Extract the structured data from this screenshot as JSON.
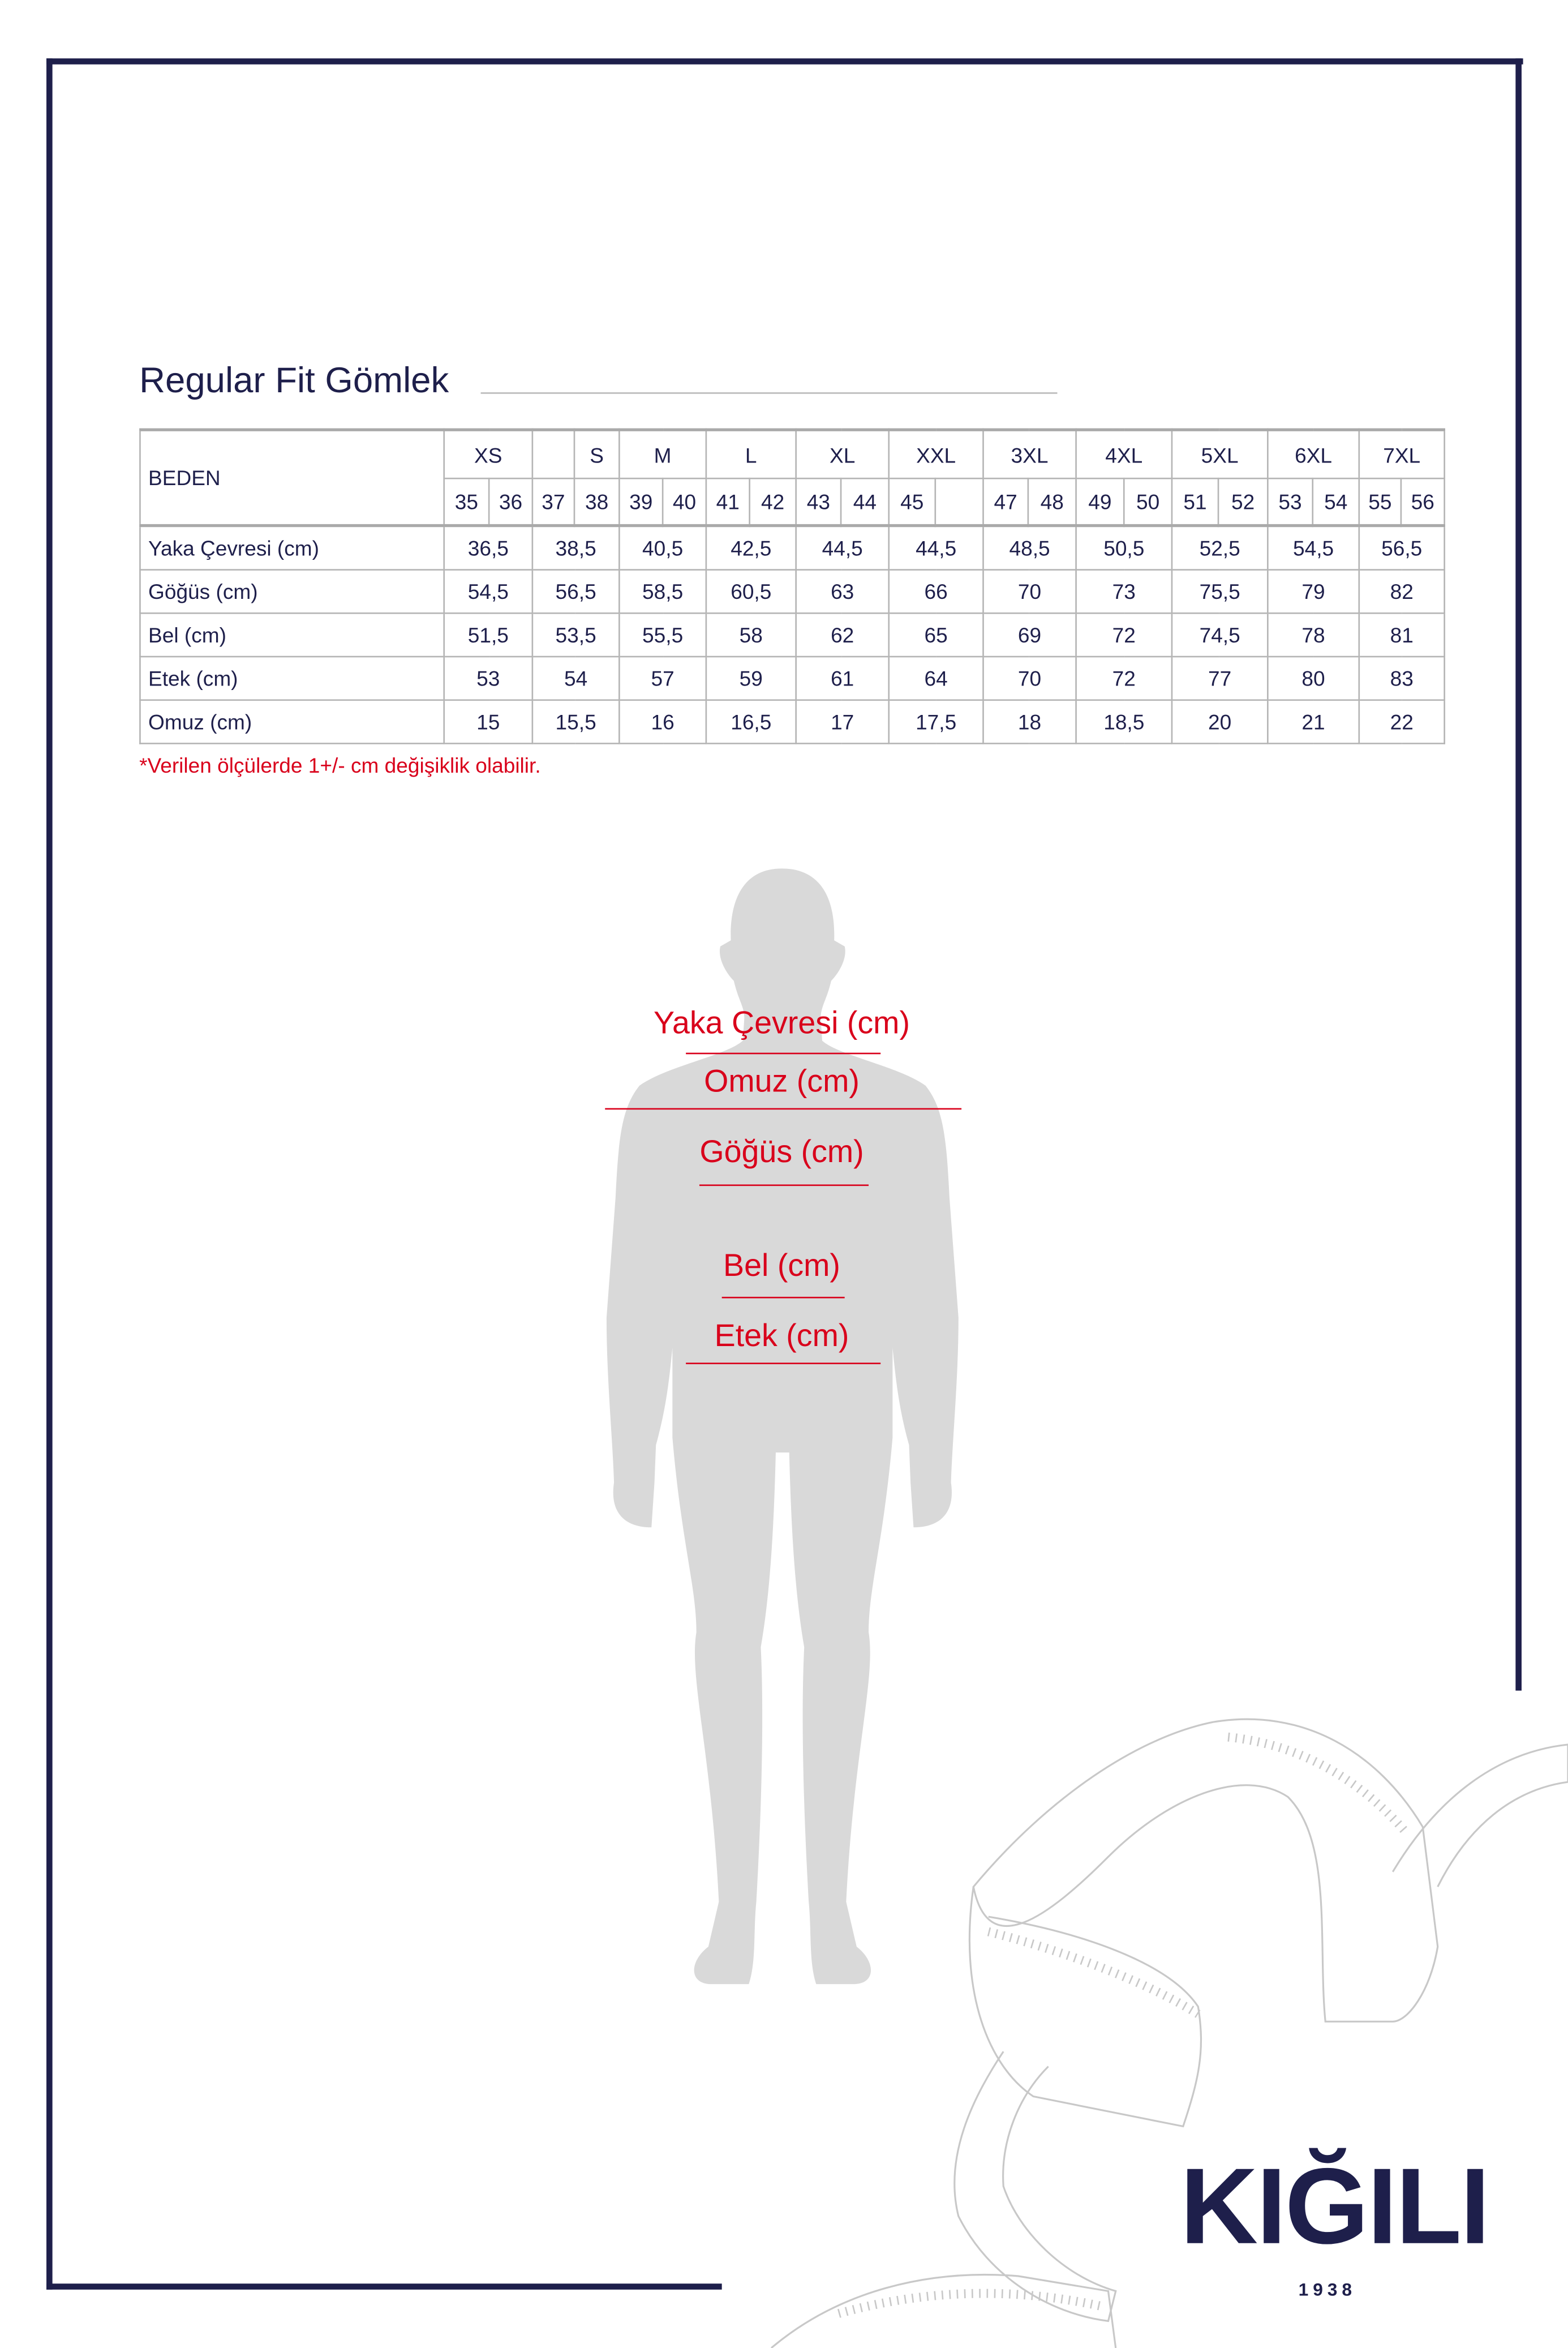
{
  "title": "Regular Fit Gömlek",
  "table": {
    "header_label": "BEDEN",
    "size_groups": [
      {
        "label": "XS",
        "span": 2
      },
      {
        "label": "",
        "span": 1
      },
      {
        "label": "S",
        "span": 1
      },
      {
        "label": "M",
        "span": 2
      },
      {
        "label": "L",
        "span": 2
      },
      {
        "label": "XL",
        "span": 2
      },
      {
        "label": "XXL",
        "span": 2
      },
      {
        "label": "3XL",
        "span": 2
      },
      {
        "label": "4XL",
        "span": 2
      },
      {
        "label": "5XL",
        "span": 2
      },
      {
        "label": "6XL",
        "span": 2
      },
      {
        "label": "7XL",
        "span": 2
      }
    ],
    "sub_sizes": [
      "35",
      "36",
      "37",
      "38",
      "39",
      "40",
      "41",
      "42",
      "43",
      "44",
      "45",
      "",
      "47",
      "48",
      "49",
      "50",
      "51",
      "52",
      "53",
      "54",
      "55",
      "56"
    ],
    "rows": [
      {
        "label": "Yaka Çevresi (cm)",
        "values": [
          "36,5",
          "38,5",
          "40,5",
          "42,5",
          "44,5",
          "44,5",
          "48,5",
          "50,5",
          "52,5",
          "54,5",
          "56,5"
        ]
      },
      {
        "label": "Göğüs (cm)",
        "values": [
          "54,5",
          "56,5",
          "58,5",
          "60,5",
          "63",
          "66",
          "70",
          "73",
          "75,5",
          "79",
          "82"
        ]
      },
      {
        "label": "Bel (cm)",
        "values": [
          "51,5",
          "53,5",
          "55,5",
          "58",
          "62",
          "65",
          "69",
          "72",
          "74,5",
          "78",
          "81"
        ]
      },
      {
        "label": "Etek (cm)",
        "values": [
          "53",
          "54",
          "57",
          "59",
          "61",
          "64",
          "70",
          "72",
          "77",
          "80",
          "83"
        ]
      },
      {
        "label": "Omuz (cm)",
        "values": [
          "15",
          "15,5",
          "16",
          "16,5",
          "17",
          "17,5",
          "18",
          "18,5",
          "20",
          "21",
          "22"
        ]
      }
    ]
  },
  "note": "*Verilen ölçülerde 1+/- cm değişiklik olabilir.",
  "figure_labels": {
    "neck": "Yaka Çevresi (cm)",
    "shoulder": "Omuz (cm)",
    "chest": "Göğüs (cm)",
    "waist": "Bel (cm)",
    "hem": "Etek (cm)"
  },
  "brand": {
    "name": "KIĞILI",
    "year": "1938"
  },
  "colors": {
    "navy": "#1e1f4b",
    "red": "#d9001b",
    "silhouette": "#d9d9d9",
    "grid": "#b5b5b5"
  }
}
